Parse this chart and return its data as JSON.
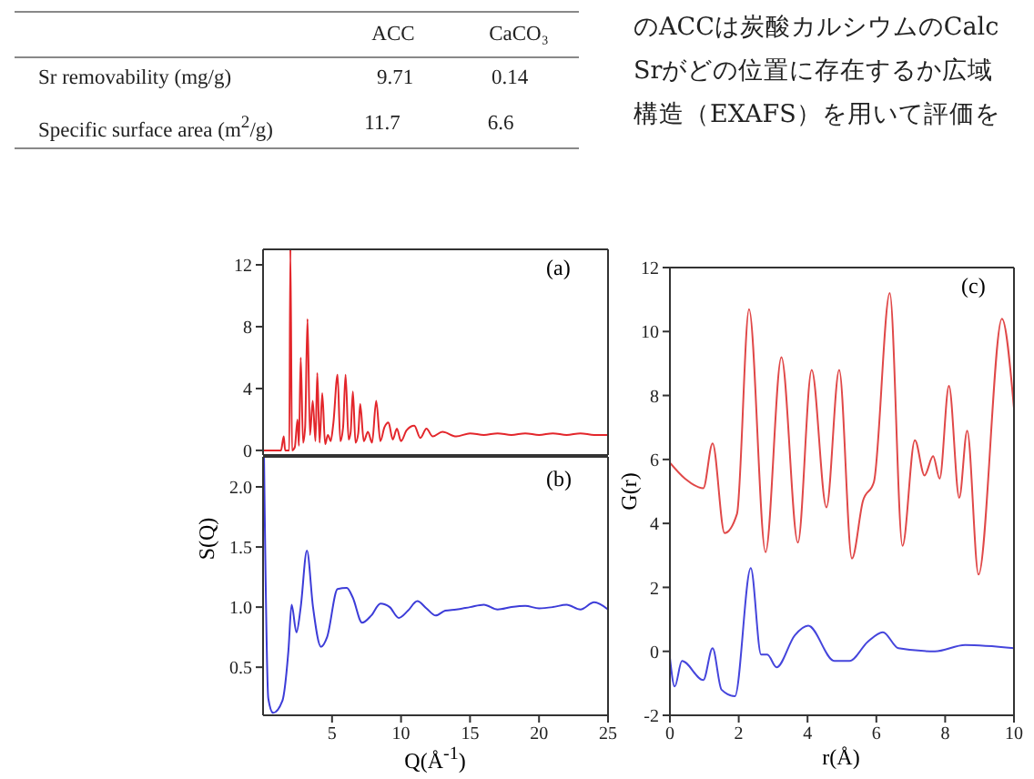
{
  "chart_data": [
    {
      "type": "other",
      "annotations": [
        "ACC",
        "CaCO₃",
        "Sr removability (mg/g)",
        "9.71",
        "0.14",
        "Specific surface area (m$^{2}$/g)",
        "11.7",
        "6.6",
        "のACCは炭酸カルシウムのCalc",
        "Srがどの位置に存在するか広域",
        "構造（EXAFS）を用いて評価を"
      ]
    },
    {
      "type": "line",
      "annotations": [
        "(a)"
      ],
      "xlim": [
        0,
        25
      ],
      "xticks": [
        5,
        10,
        15,
        20,
        25
      ],
      "ylim": [
        -0.3,
        13
      ],
      "yticks": [
        0,
        4,
        8,
        12
      ],
      "tick_labels": "y",
      "series": [
        {
          "color": "#e3262b",
          "x": [
            0,
            1.3,
            1.5,
            1.6,
            1.9,
            1.98,
            2.1,
            2.3,
            2.5,
            2.6,
            2.73,
            2.9,
            3.05,
            3.22,
            3.4,
            3.6,
            3.8,
            3.93,
            4.1,
            4.29,
            4.5,
            4.7,
            4.9,
            5.1,
            5.4,
            5.6,
            5.8,
            5.98,
            6.2,
            6.35,
            6.51,
            6.7,
            6.9,
            7.04,
            7.3,
            7.6,
            7.9,
            8.2,
            8.5,
            8.8,
            9.09,
            9.4,
            9.7,
            10.0,
            10.4,
            10.96,
            11.4,
            11.84,
            12.3,
            13,
            14,
            15,
            16,
            17,
            18,
            19,
            20,
            21,
            22,
            23,
            24,
            25
          ],
          "values": [
            0,
            0,
            0.9,
            0,
            0,
            13,
            0,
            0.2,
            2.0,
            0.3,
            6.0,
            0.5,
            1.5,
            8.5,
            1.0,
            3.2,
            0.6,
            5.0,
            0.5,
            3.7,
            0.4,
            1.0,
            0.6,
            1.8,
            4.9,
            0.6,
            1.5,
            4.9,
            0.7,
            1.2,
            3.8,
            0.5,
            1.1,
            3.0,
            0.6,
            1.2,
            0.5,
            3.2,
            0.6,
            1.5,
            1.8,
            0.7,
            1.4,
            0.6,
            1.3,
            1.6,
            0.8,
            1.4,
            0.9,
            1.2,
            0.9,
            1.1,
            1.0,
            1.1,
            1.0,
            1.1,
            1.0,
            1.1,
            1.0,
            1.1,
            1.0,
            1.0
          ]
        }
      ]
    },
    {
      "type": "line",
      "annotations": [
        "(b)"
      ],
      "xlabel": "Q(Å$^{-1}$)",
      "ylabel": "S(Q)",
      "xlim": [
        0,
        25
      ],
      "xticks": [
        5,
        10,
        15,
        20,
        25
      ],
      "ylim": [
        0.1,
        2.25
      ],
      "yticks": [
        0.5,
        {
          "value": 1,
          "label": "1.0"
        },
        1.5,
        {
          "value": 2,
          "label": "2.0"
        }
      ],
      "series": [
        {
          "color": "#3c3cd8",
          "x": [
            0.07,
            0.38,
            0.73,
            1.4,
            1.84,
            2.07,
            2.42,
            2.73,
            3.18,
            3.62,
            4.2,
            4.64,
            5.4,
            6.07,
            6.5,
            7.18,
            7.84,
            8.51,
            9.18,
            9.84,
            10.5,
            11.18,
            11.84,
            12.51,
            13.2,
            14,
            15,
            16,
            17,
            18,
            19,
            20,
            21,
            22,
            23,
            24,
            25
          ],
          "values": [
            2.25,
            0.24,
            0.12,
            0.22,
            0.64,
            1.02,
            0.79,
            1.0,
            1.47,
            1.0,
            0.67,
            0.75,
            1.15,
            1.16,
            1.08,
            0.87,
            0.93,
            1.03,
            1.0,
            0.91,
            0.97,
            1.05,
            0.99,
            0.93,
            0.97,
            0.98,
            1.0,
            1.02,
            0.98,
            1.0,
            1.01,
            0.99,
            1.0,
            1.02,
            0.98,
            1.04,
            0.98
          ]
        }
      ]
    },
    {
      "type": "line",
      "annotations": [
        "(c)"
      ],
      "xlabel": "r(Å)",
      "ylabel": "G(r)",
      "xlim": [
        0,
        10
      ],
      "xticks": [
        0,
        2,
        4,
        6,
        8,
        10
      ],
      "ylim": [
        -2,
        12
      ],
      "yticks": [
        -2,
        0,
        2,
        4,
        6,
        8,
        10,
        12
      ],
      "series": [
        {
          "color": "#e04848",
          "x": [
            0,
            0.44,
            0.97,
            1.24,
            1.59,
            1.95,
            2.3,
            2.78,
            3.24,
            3.72,
            4.12,
            4.55,
            4.92,
            5.29,
            5.61,
            5.93,
            6.39,
            6.76,
            7.12,
            7.4,
            7.65,
            7.84,
            8.11,
            8.41,
            8.64,
            8.97,
            9.65,
            10
          ],
          "values": [
            5.9,
            5.4,
            5.1,
            6.5,
            3.7,
            4.3,
            10.7,
            3.1,
            9.2,
            3.4,
            8.8,
            4.5,
            8.8,
            2.9,
            4.7,
            5.3,
            11.2,
            3.3,
            6.6,
            5.5,
            6.1,
            5.4,
            8.3,
            4.8,
            6.9,
            2.4,
            10.4,
            7.6
          ]
        },
        {
          "color": "#4545dc",
          "x": [
            0,
            0.14,
            0.35,
            0.97,
            1.24,
            1.5,
            1.89,
            2.35,
            2.65,
            2.83,
            3.1,
            3.63,
            4.02,
            4.78,
            5.22,
            5.75,
            6.19,
            6.64,
            7.7,
            8.58,
            10
          ],
          "values": [
            -0.2,
            -1.1,
            -0.3,
            -0.9,
            0.1,
            -1.2,
            -1.4,
            2.6,
            -0.1,
            -0.1,
            -0.5,
            0.5,
            0.8,
            -0.3,
            -0.3,
            0.3,
            0.6,
            0.1,
            0,
            0.2,
            0.1
          ]
        }
      ]
    }
  ]
}
